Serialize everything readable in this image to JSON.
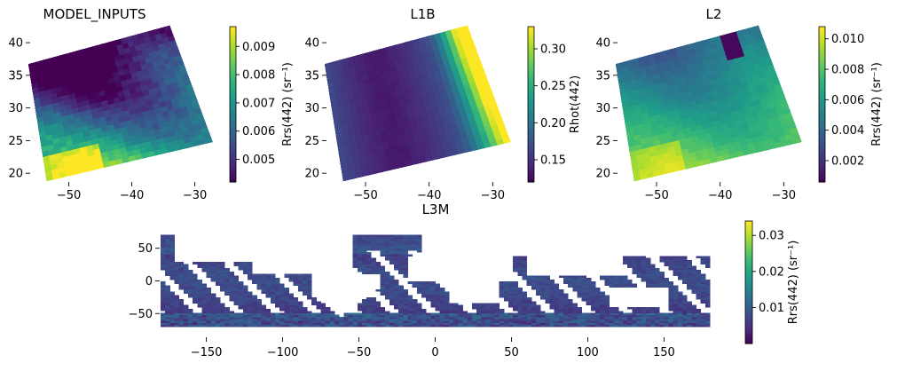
{
  "chart_data": [
    {
      "type": "heatmap",
      "title": "MODEL_INPUTS",
      "xticks": [
        "−50",
        "−40",
        "−30"
      ],
      "xtick_values": [
        -50,
        -40,
        -30
      ],
      "yticks": [
        "20",
        "25",
        "30",
        "35",
        "40"
      ],
      "ytick_values": [
        20,
        25,
        30,
        35,
        40
      ],
      "xlim": [
        -56,
        -26
      ],
      "ylim": [
        18.8,
        43
      ],
      "grid": false,
      "colormap": "viridis",
      "colorbar": {
        "label": "Rrs(442) (sr⁻¹)",
        "range": [
          0.0042,
          0.0097
        ],
        "ticks": [
          "0.005",
          "0.006",
          "0.007",
          "0.008",
          "0.009"
        ],
        "tick_values": [
          0.005,
          0.006,
          0.007,
          0.008,
          0.009
        ]
      },
      "field": "rrs_model"
    },
    {
      "type": "heatmap",
      "title": "L1B",
      "xticks": [
        "−50",
        "−40",
        "−30"
      ],
      "xtick_values": [
        -50,
        -40,
        -30
      ],
      "yticks": [
        "20",
        "25",
        "30",
        "35",
        "40"
      ],
      "ytick_values": [
        20,
        25,
        30,
        35,
        40
      ],
      "xlim": [
        -56,
        -26
      ],
      "ylim": [
        18.8,
        43
      ],
      "grid": false,
      "colormap": "viridis",
      "colorbar": {
        "label": "Rhot(442)",
        "range": [
          0.12,
          0.33
        ],
        "ticks": [
          "0.15",
          "0.20",
          "0.25",
          "0.30"
        ],
        "tick_values": [
          0.15,
          0.2,
          0.25,
          0.3
        ]
      },
      "field": "rhot"
    },
    {
      "type": "heatmap",
      "title": "L2",
      "xticks": [
        "−50",
        "−40",
        "−30"
      ],
      "xtick_values": [
        -50,
        -40,
        -30
      ],
      "yticks": [
        "20",
        "25",
        "30",
        "35",
        "40"
      ],
      "ytick_values": [
        20,
        25,
        30,
        35,
        40
      ],
      "xlim": [
        -56,
        -26
      ],
      "ylim": [
        18.8,
        43
      ],
      "grid": false,
      "colormap": "viridis",
      "colorbar": {
        "label": "Rrs(442) (sr⁻¹)",
        "range": [
          0.0006,
          0.0108
        ],
        "ticks": [
          "0.002",
          "0.004",
          "0.006",
          "0.008",
          "0.010"
        ],
        "tick_values": [
          0.002,
          0.004,
          0.006,
          0.008,
          0.01
        ]
      },
      "field": "rrs_l2"
    },
    {
      "type": "heatmap",
      "title": "L3M",
      "xticks": [
        "−150",
        "−100",
        "−50",
        "0",
        "50",
        "100",
        "150"
      ],
      "xtick_values": [
        -150,
        -100,
        -50,
        0,
        50,
        100,
        150
      ],
      "yticks": [
        "−50",
        "0",
        "50"
      ],
      "ytick_values": [
        -50,
        0,
        50
      ],
      "xlim": [
        -180,
        180
      ],
      "ylim": [
        -85,
        70
      ],
      "grid": false,
      "colormap": "viridis",
      "colorbar": {
        "label": "Rrs(442) (sr⁻¹)",
        "range": [
          0.0,
          0.034
        ],
        "ticks": [
          "0.01",
          "0.02",
          "0.03"
        ],
        "tick_values": [
          0.01,
          0.02,
          0.03
        ]
      },
      "field": "rrs_global"
    }
  ]
}
